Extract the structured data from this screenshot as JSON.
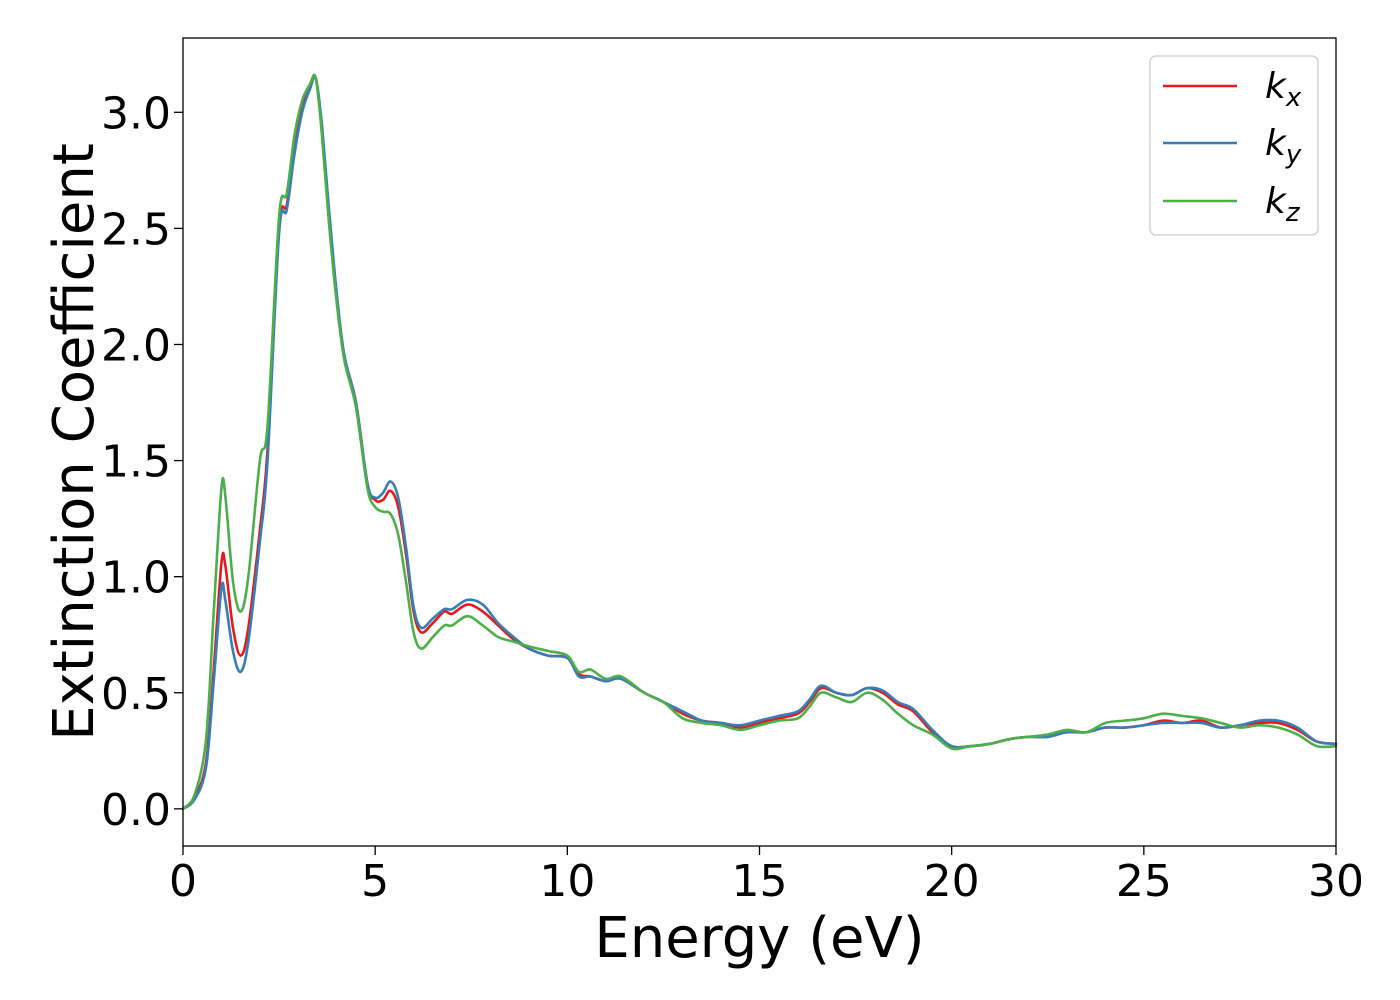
{
  "chart_data": {
    "type": "line",
    "title": "",
    "xlabel": "Energy (eV)",
    "ylabel": "Extinction Coefficient",
    "xlim": [
      0,
      30
    ],
    "ylim": [
      -0.16,
      3.32
    ],
    "xticks": [
      0,
      5,
      10,
      15,
      20,
      25,
      30
    ],
    "xtick_labels": [
      "0",
      "5",
      "10",
      "15",
      "20",
      "25",
      "30"
    ],
    "yticks": [
      0.0,
      0.5,
      1.0,
      1.5,
      2.0,
      2.5,
      3.0
    ],
    "ytick_labels": [
      "0.0",
      "0.5",
      "1.0",
      "1.5",
      "2.0",
      "2.5",
      "3.0"
    ],
    "grid": false,
    "legend_position": "top-right",
    "series": [
      {
        "name": "k_x",
        "legend_base": "k",
        "legend_sub": "x",
        "color": "#e41a1c",
        "x": [
          0,
          0.3,
          0.6,
          0.8,
          1.0,
          1.1,
          1.3,
          1.5,
          1.7,
          2.0,
          2.2,
          2.5,
          2.7,
          2.9,
          3.1,
          3.3,
          3.45,
          3.6,
          3.8,
          4.0,
          4.2,
          4.5,
          4.8,
          5.0,
          5.2,
          5.4,
          5.6,
          5.8,
          6.0,
          6.2,
          6.5,
          6.8,
          7.0,
          7.4,
          7.8,
          8.2,
          8.6,
          9.0,
          9.5,
          10.0,
          10.3,
          10.6,
          11.0,
          11.4,
          12.0,
          12.5,
          13.0,
          13.5,
          14.0,
          14.5,
          15.0,
          15.5,
          16.0,
          16.3,
          16.6,
          17.0,
          17.4,
          17.8,
          18.2,
          18.6,
          19.0,
          19.5,
          20.0,
          20.5,
          21.0,
          21.5,
          22.0,
          22.5,
          23.0,
          23.5,
          24.0,
          24.5,
          25.0,
          25.5,
          26.0,
          26.5,
          27.0,
          27.5,
          28.0,
          28.5,
          29.0,
          29.5,
          30.0
        ],
        "y": [
          0.0,
          0.05,
          0.2,
          0.6,
          1.06,
          1.05,
          0.78,
          0.66,
          0.78,
          1.2,
          1.55,
          2.5,
          2.6,
          2.85,
          3.02,
          3.1,
          3.15,
          2.95,
          2.55,
          2.2,
          1.95,
          1.75,
          1.4,
          1.33,
          1.33,
          1.37,
          1.3,
          1.1,
          0.85,
          0.76,
          0.8,
          0.85,
          0.84,
          0.88,
          0.85,
          0.79,
          0.73,
          0.69,
          0.66,
          0.65,
          0.58,
          0.57,
          0.55,
          0.56,
          0.5,
          0.46,
          0.41,
          0.38,
          0.37,
          0.35,
          0.37,
          0.39,
          0.41,
          0.46,
          0.52,
          0.5,
          0.49,
          0.52,
          0.5,
          0.45,
          0.42,
          0.33,
          0.27,
          0.27,
          0.28,
          0.3,
          0.31,
          0.31,
          0.33,
          0.33,
          0.35,
          0.35,
          0.36,
          0.38,
          0.37,
          0.38,
          0.35,
          0.36,
          0.37,
          0.37,
          0.34,
          0.29,
          0.28
        ]
      },
      {
        "name": "k_y",
        "legend_base": "k",
        "legend_sub": "y",
        "color": "#377eb8",
        "x": [
          0,
          0.3,
          0.6,
          0.8,
          1.0,
          1.1,
          1.3,
          1.5,
          1.7,
          2.0,
          2.2,
          2.5,
          2.7,
          2.9,
          3.1,
          3.3,
          3.45,
          3.6,
          3.8,
          4.0,
          4.2,
          4.5,
          4.8,
          5.0,
          5.2,
          5.4,
          5.6,
          5.8,
          6.0,
          6.2,
          6.5,
          6.8,
          7.0,
          7.4,
          7.8,
          8.2,
          8.6,
          9.0,
          9.5,
          10.0,
          10.3,
          10.6,
          11.0,
          11.4,
          12.0,
          12.5,
          13.0,
          13.5,
          14.0,
          14.5,
          15.0,
          15.5,
          16.0,
          16.3,
          16.6,
          17.0,
          17.4,
          17.8,
          18.2,
          18.6,
          19.0,
          19.5,
          20.0,
          20.5,
          21.0,
          21.5,
          22.0,
          22.5,
          23.0,
          23.5,
          24.0,
          24.5,
          25.0,
          25.5,
          26.0,
          26.5,
          27.0,
          27.5,
          28.0,
          28.5,
          29.0,
          29.5,
          30.0
        ],
        "y": [
          0.0,
          0.04,
          0.18,
          0.55,
          0.95,
          0.9,
          0.68,
          0.59,
          0.72,
          1.15,
          1.5,
          2.48,
          2.58,
          2.82,
          3.0,
          3.1,
          3.15,
          2.97,
          2.58,
          2.22,
          1.95,
          1.75,
          1.4,
          1.34,
          1.36,
          1.41,
          1.34,
          1.13,
          0.87,
          0.78,
          0.82,
          0.86,
          0.86,
          0.9,
          0.88,
          0.8,
          0.74,
          0.69,
          0.66,
          0.65,
          0.57,
          0.57,
          0.55,
          0.56,
          0.5,
          0.46,
          0.42,
          0.38,
          0.37,
          0.36,
          0.38,
          0.4,
          0.42,
          0.47,
          0.53,
          0.5,
          0.49,
          0.52,
          0.51,
          0.46,
          0.43,
          0.34,
          0.27,
          0.27,
          0.28,
          0.3,
          0.31,
          0.31,
          0.33,
          0.33,
          0.35,
          0.35,
          0.36,
          0.37,
          0.37,
          0.37,
          0.35,
          0.36,
          0.38,
          0.38,
          0.35,
          0.29,
          0.28
        ]
      },
      {
        "name": "k_z",
        "legend_base": "k",
        "legend_sub": "z",
        "color": "#4daf4a",
        "x": [
          0,
          0.3,
          0.6,
          0.8,
          1.0,
          1.1,
          1.3,
          1.5,
          1.7,
          2.0,
          2.2,
          2.5,
          2.7,
          2.9,
          3.1,
          3.3,
          3.45,
          3.6,
          3.8,
          4.0,
          4.2,
          4.5,
          4.8,
          5.0,
          5.2,
          5.4,
          5.6,
          5.8,
          6.0,
          6.2,
          6.5,
          6.8,
          7.0,
          7.4,
          7.8,
          8.2,
          8.6,
          9.0,
          9.5,
          10.0,
          10.3,
          10.6,
          11.0,
          11.4,
          12.0,
          12.5,
          13.0,
          13.5,
          14.0,
          14.5,
          15.0,
          15.5,
          16.0,
          16.3,
          16.6,
          17.0,
          17.4,
          17.8,
          18.2,
          18.6,
          19.0,
          19.5,
          20.0,
          20.5,
          21.0,
          21.5,
          22.0,
          22.5,
          23.0,
          23.5,
          24.0,
          24.5,
          25.0,
          25.5,
          26.0,
          26.5,
          27.0,
          27.5,
          28.0,
          28.5,
          29.0,
          29.5,
          30.0
        ],
        "y": [
          0.0,
          0.06,
          0.3,
          0.85,
          1.38,
          1.35,
          0.98,
          0.85,
          1.0,
          1.5,
          1.65,
          2.55,
          2.65,
          2.9,
          3.05,
          3.12,
          3.15,
          2.93,
          2.52,
          2.18,
          1.93,
          1.73,
          1.38,
          1.3,
          1.28,
          1.27,
          1.18,
          0.98,
          0.76,
          0.69,
          0.74,
          0.79,
          0.79,
          0.83,
          0.79,
          0.74,
          0.72,
          0.7,
          0.68,
          0.66,
          0.59,
          0.6,
          0.56,
          0.57,
          0.5,
          0.46,
          0.39,
          0.37,
          0.36,
          0.34,
          0.36,
          0.38,
          0.39,
          0.44,
          0.5,
          0.48,
          0.46,
          0.5,
          0.47,
          0.41,
          0.36,
          0.32,
          0.26,
          0.27,
          0.28,
          0.3,
          0.31,
          0.32,
          0.34,
          0.33,
          0.37,
          0.38,
          0.39,
          0.41,
          0.4,
          0.39,
          0.37,
          0.35,
          0.36,
          0.35,
          0.32,
          0.27,
          0.27
        ]
      }
    ]
  }
}
